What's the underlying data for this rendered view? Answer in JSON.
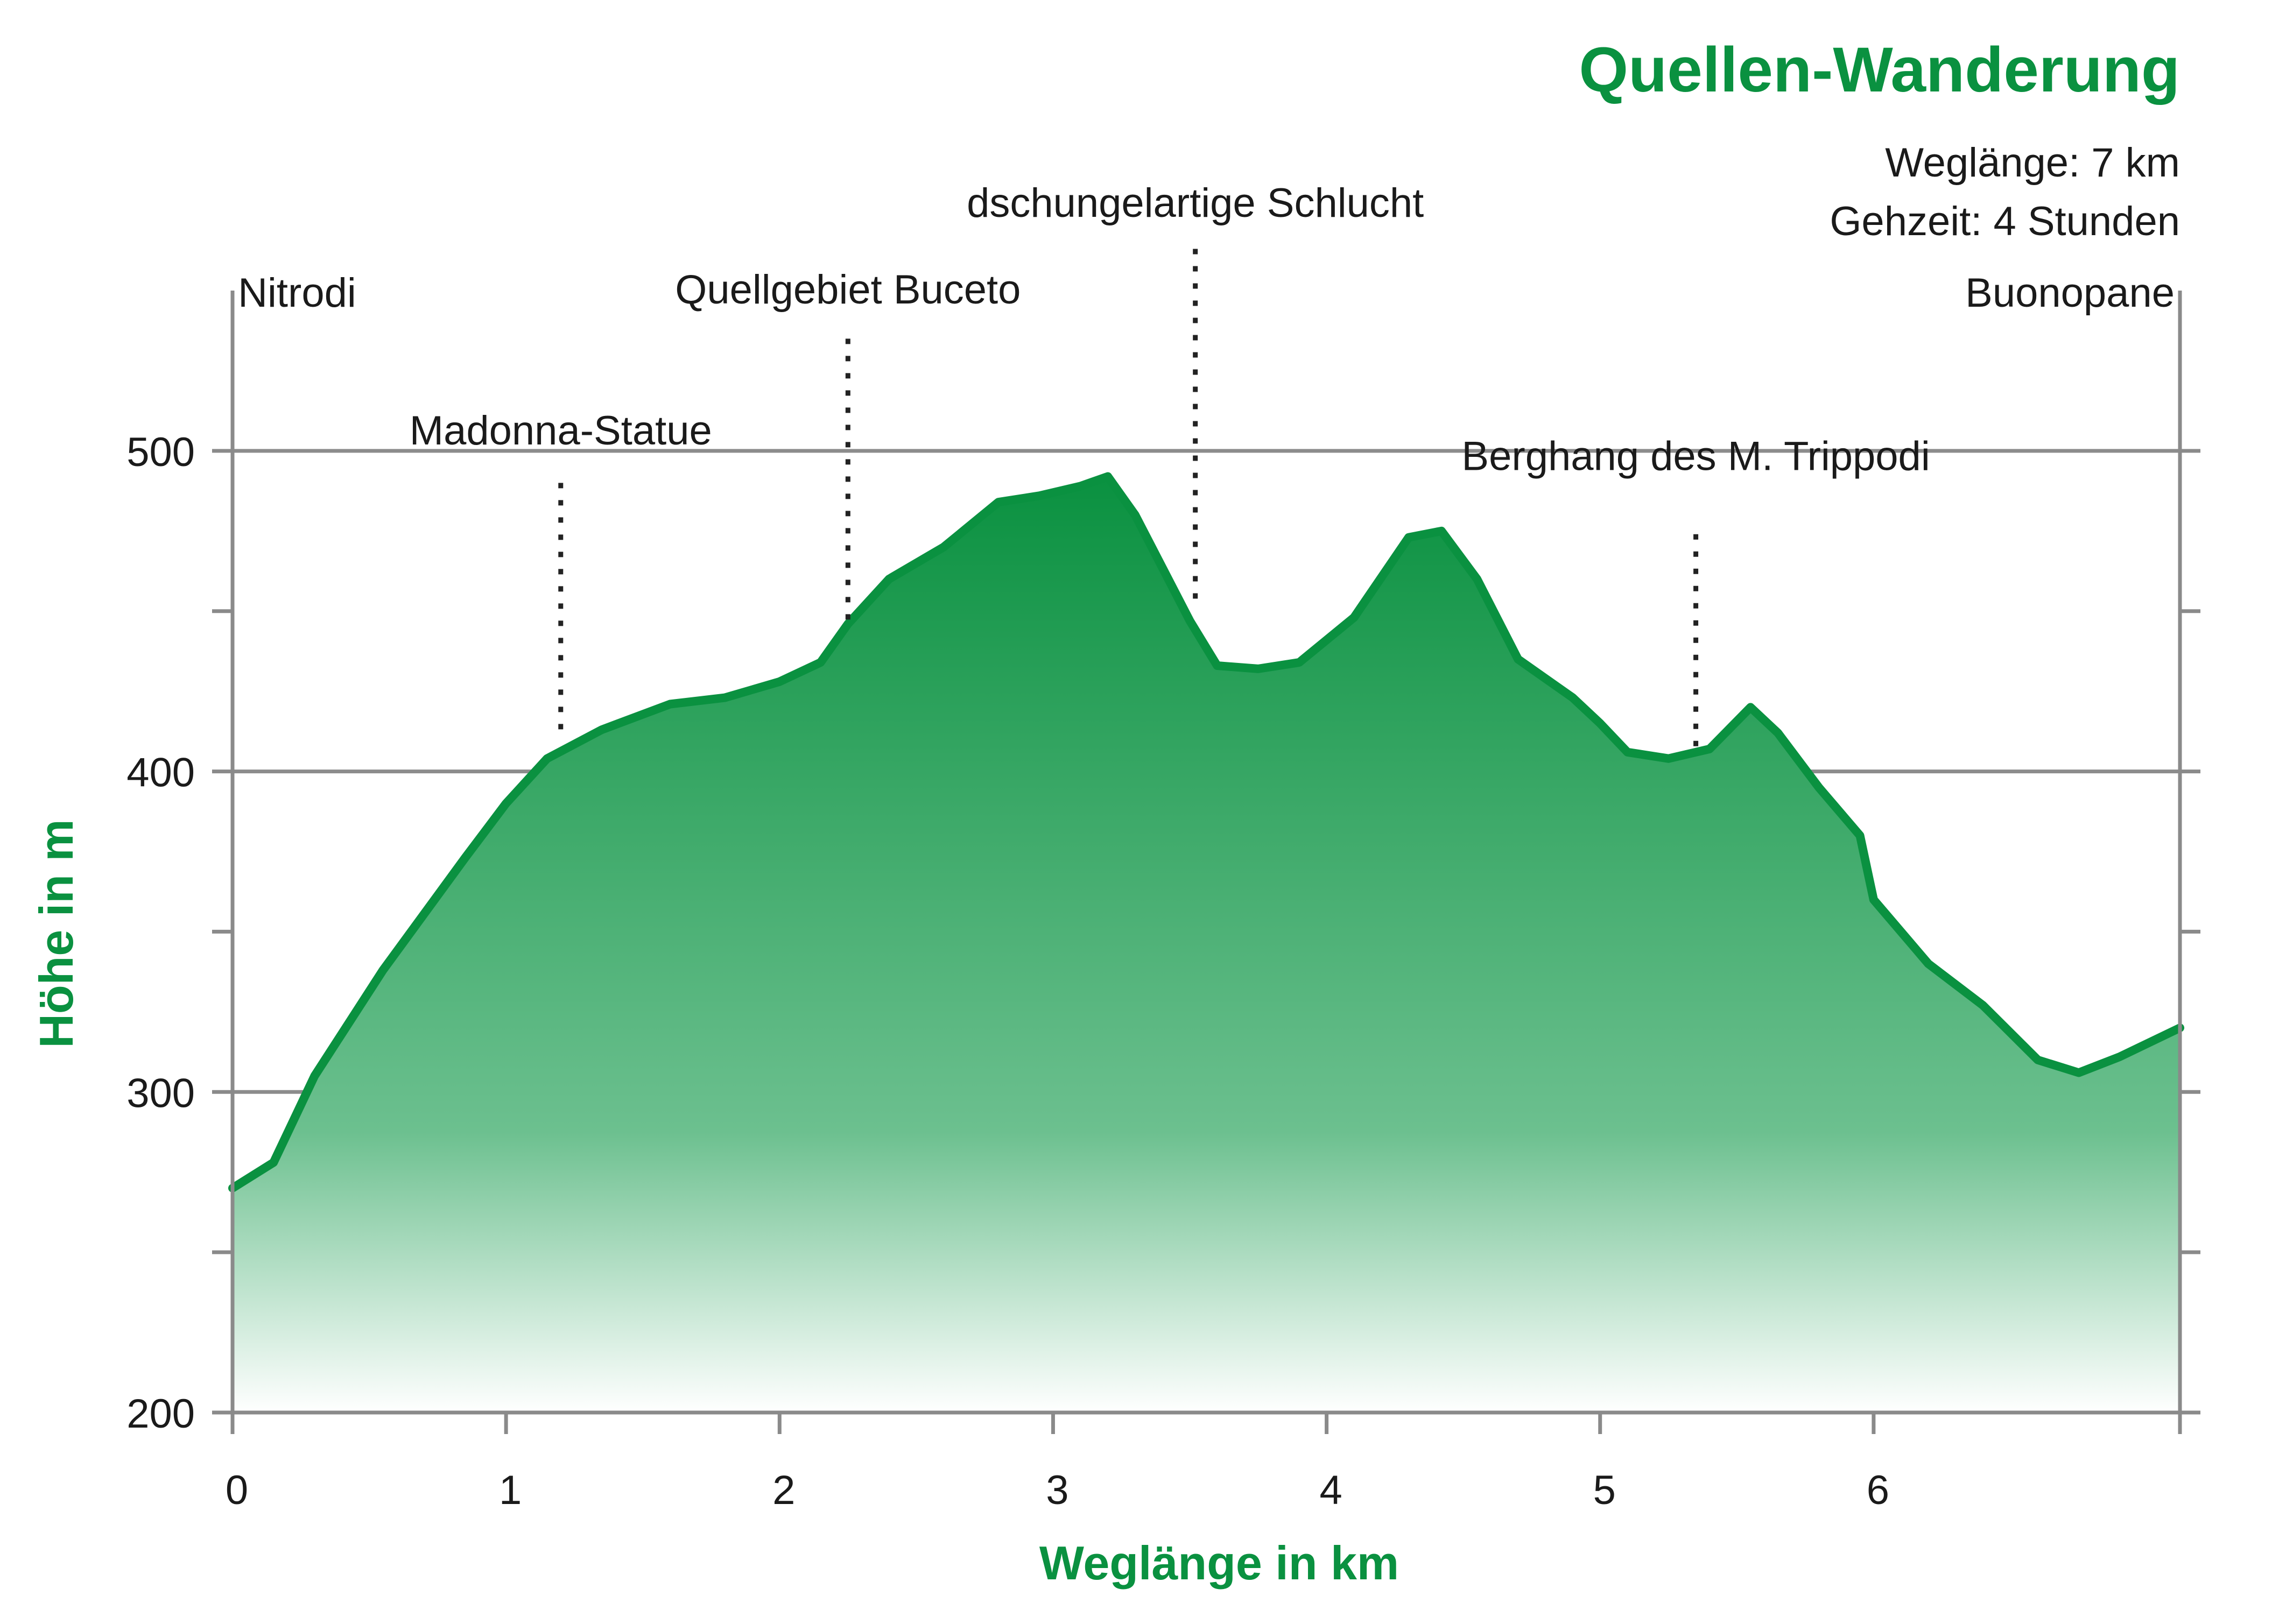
{
  "colors": {
    "accent": "#0a9140",
    "axis": "#8a8a8a",
    "grid": "#8c8c8c",
    "text": "#1a1a1a",
    "fill_top": "#0a9140",
    "fill_bottom": "#ffffff"
  },
  "chart_data": {
    "type": "area",
    "title": "Quellen-Wanderung",
    "info": [
      "Weglänge: 7 km",
      "Gehzeit: 4 Stunden"
    ],
    "xlabel": "Weglänge in km",
    "ylabel": "Höhe in m",
    "xlim": [
      0,
      7.12
    ],
    "ylim": [
      200,
      550
    ],
    "x_ticks": [
      0,
      1,
      2,
      3,
      4,
      5,
      6
    ],
    "x_tick_labels": [
      "0",
      "1",
      "2",
      "3",
      "4",
      "5",
      "6"
    ],
    "y_ticks": [
      200,
      300,
      400,
      500
    ],
    "y_tick_labels": [
      "200",
      "300",
      "400",
      "500"
    ],
    "y_minor_ticks": [
      250,
      350,
      450
    ],
    "grid": true,
    "series": [
      {
        "x": [
          0,
          0.15,
          0.3,
          0.55,
          0.85,
          1.0,
          1.15,
          1.35,
          1.6,
          1.8,
          2.0,
          2.15,
          2.25,
          2.4,
          2.6,
          2.8,
          2.95,
          3.1,
          3.2,
          3.3,
          3.5,
          3.6,
          3.75,
          3.9,
          4.1,
          4.3,
          4.42,
          4.55,
          4.7,
          4.9,
          5.0,
          5.1,
          5.25,
          5.4,
          5.55,
          5.65,
          5.8,
          5.95,
          6.0,
          6.2,
          6.4,
          6.6,
          6.75,
          6.9,
          7.12
        ],
        "y": [
          270,
          278,
          305,
          338,
          373,
          390,
          404,
          413,
          421,
          423,
          428,
          434,
          446,
          460,
          470,
          484,
          486,
          489,
          492,
          480,
          447,
          433,
          432,
          434,
          448,
          473,
          475,
          460,
          435,
          423,
          415,
          406,
          404,
          407,
          420,
          412,
          395,
          380,
          360,
          340,
          327,
          310,
          306,
          311,
          320
        ]
      }
    ],
    "annotations": [
      {
        "label": "Nitrodi",
        "x": 0.02,
        "y": 545,
        "marker": false
      },
      {
        "label": "Buonopane",
        "x": 7.12,
        "y": 545,
        "marker": false,
        "align": "end"
      },
      {
        "label": "Madonna-Statue",
        "x": 1.2,
        "y": 502,
        "marker": true,
        "line_top": 490,
        "line_bottom": 410
      },
      {
        "label": "Quellgebiet Buceto",
        "x": 2.25,
        "y": 546,
        "marker": true,
        "line_top": 535,
        "line_bottom": 445
      },
      {
        "label": "dschungelartige Schlucht",
        "x": 3.52,
        "y": 573,
        "marker": true,
        "line_top": 563,
        "line_bottom": 453
      },
      {
        "label": "Berghang des M. Trippodi",
        "x": 5.35,
        "y": 494,
        "marker": true,
        "line_top": 474,
        "line_bottom": 406
      }
    ]
  }
}
